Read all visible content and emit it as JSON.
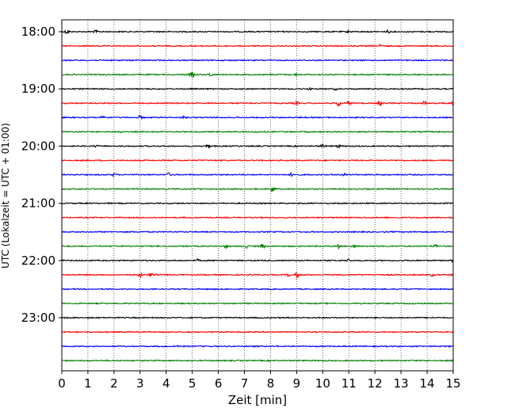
{
  "chart_data": {
    "type": "line",
    "xlabel": "Zeit  [min]",
    "ylabel": "UTC (Lokalzeit = UTC + 01:00)",
    "xlim": [
      0,
      15
    ],
    "x_ticks": [
      0,
      1,
      2,
      3,
      4,
      5,
      6,
      7,
      8,
      9,
      10,
      11,
      12,
      13,
      14,
      15
    ],
    "y_tick_labels": [
      "18:00",
      "19:00",
      "20:00",
      "21:00",
      "22:00",
      "23:00"
    ],
    "grid": "vertical-dotted",
    "trace_colors": [
      "#000000",
      "#ff0000",
      "#0000ff",
      "#008000"
    ],
    "traces": [
      {
        "start": "18:00",
        "events": [
          [
            0.2,
            2.5
          ],
          [
            1.3,
            1.5
          ],
          [
            11.0,
            1.0
          ],
          [
            12.5,
            1.5
          ]
        ]
      },
      {
        "start": "18:15",
        "events": [
          [
            12.2,
            1.2
          ]
        ]
      },
      {
        "start": "18:30",
        "events": []
      },
      {
        "start": "18:45",
        "events": [
          [
            5.0,
            3.0
          ],
          [
            5.7,
            2.0
          ],
          [
            9.0,
            1.5
          ]
        ]
      },
      {
        "start": "19:00",
        "events": [
          [
            9.5,
            1.0
          ],
          [
            10.5,
            1.0
          ]
        ]
      },
      {
        "start": "19:15",
        "events": [
          [
            9.0,
            1.5
          ],
          [
            10.6,
            3.0
          ],
          [
            11.0,
            2.0
          ],
          [
            12.2,
            2.8
          ],
          [
            13.9,
            2.0
          ],
          [
            15.0,
            2.0
          ]
        ]
      },
      {
        "start": "19:30",
        "events": [
          [
            1.6,
            2.8
          ],
          [
            3.0,
            2.0
          ],
          [
            4.7,
            1.2
          ]
        ]
      },
      {
        "start": "19:45",
        "events": [
          [
            2.2,
            1.2
          ],
          [
            7.5,
            1.0
          ]
        ]
      },
      {
        "start": "20:00",
        "events": [
          [
            1.3,
            1.2
          ],
          [
            5.6,
            2.5
          ],
          [
            10.0,
            2.2
          ],
          [
            10.6,
            1.5
          ]
        ]
      },
      {
        "start": "20:15",
        "events": []
      },
      {
        "start": "20:30",
        "events": [
          [
            2.0,
            1.5
          ],
          [
            4.1,
            2.0
          ],
          [
            8.8,
            1.5
          ],
          [
            10.8,
            1.8
          ]
        ]
      },
      {
        "start": "20:45",
        "events": [
          [
            8.1,
            3.5
          ]
        ]
      },
      {
        "start": "21:00",
        "events": []
      },
      {
        "start": "21:15",
        "events": []
      },
      {
        "start": "21:30",
        "events": []
      },
      {
        "start": "21:45",
        "events": [
          [
            6.3,
            2.0
          ],
          [
            7.1,
            2.0
          ],
          [
            7.7,
            2.5
          ],
          [
            10.6,
            2.5
          ],
          [
            11.2,
            2.0
          ],
          [
            14.3,
            2.0
          ]
        ]
      },
      {
        "start": "22:00",
        "events": [
          [
            5.2,
            1.2
          ],
          [
            11.0,
            1.5
          ],
          [
            15.0,
            1.5
          ]
        ]
      },
      {
        "start": "22:15",
        "events": [
          [
            3.0,
            2.5
          ],
          [
            3.4,
            2.0
          ],
          [
            8.7,
            1.5
          ],
          [
            9.0,
            2.8
          ],
          [
            14.2,
            1.5
          ]
        ]
      },
      {
        "start": "22:30",
        "events": []
      },
      {
        "start": "22:45",
        "events": []
      },
      {
        "start": "23:00",
        "events": []
      },
      {
        "start": "23:15",
        "events": []
      },
      {
        "start": "23:30",
        "events": [
          [
            4.4,
            1.2
          ]
        ]
      },
      {
        "start": "23:45",
        "events": []
      }
    ]
  }
}
